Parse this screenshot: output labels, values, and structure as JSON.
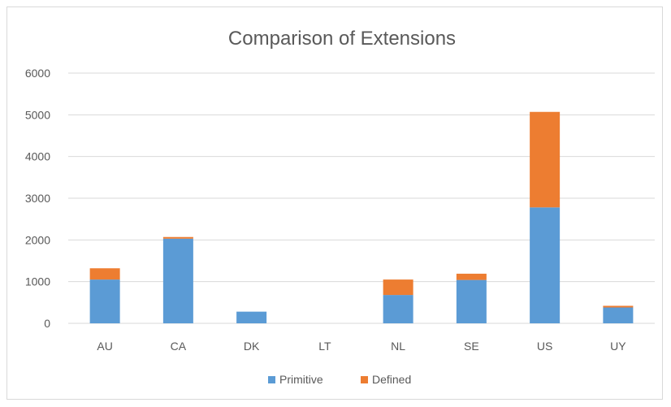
{
  "chart_data": {
    "type": "bar",
    "stacked": true,
    "title": "Comparison of Extensions",
    "categories": [
      "AU",
      "CA",
      "DK",
      "LT",
      "NL",
      "SE",
      "US",
      "UY"
    ],
    "series": [
      {
        "name": "Primitive",
        "color": "#5B9BD5",
        "values": [
          1050,
          2030,
          280,
          0,
          680,
          1040,
          2780,
          380
        ]
      },
      {
        "name": "Defined",
        "color": "#ED7D31",
        "values": [
          270,
          40,
          0,
          0,
          370,
          150,
          2290,
          40
        ]
      }
    ],
    "ylim": [
      0,
      6000
    ],
    "yticks": [
      0,
      1000,
      2000,
      3000,
      4000,
      5000,
      6000
    ],
    "grid": true,
    "legend_position": "bottom"
  }
}
